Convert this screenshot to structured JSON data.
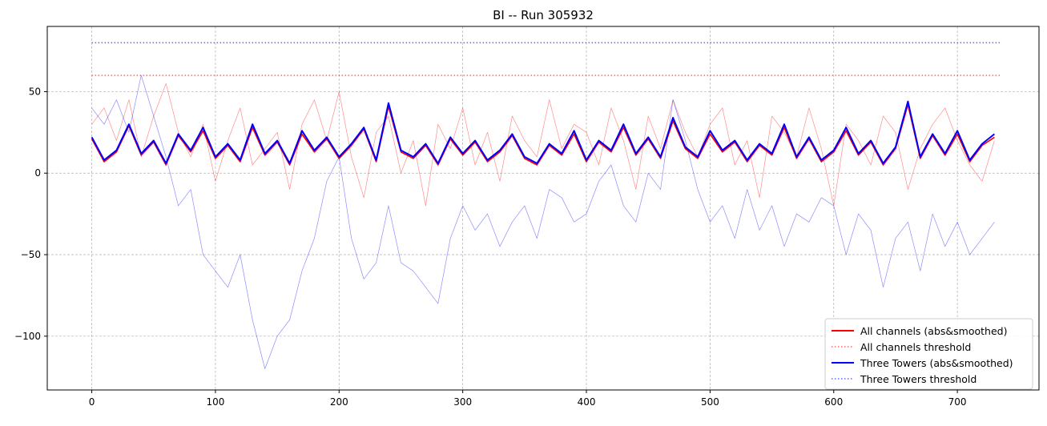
{
  "chart_data": {
    "type": "line",
    "title": "BI -- Run 305932",
    "xlabel": "",
    "ylabel": "",
    "xlim": [
      -36,
      766
    ],
    "ylim": [
      -133,
      90
    ],
    "xticks": [
      0,
      100,
      200,
      300,
      400,
      500,
      600,
      700
    ],
    "yticks": [
      -100,
      -50,
      0,
      50
    ],
    "ytick_labels": [
      "−100",
      "−50",
      "0",
      "50"
    ],
    "grid": true,
    "legend_position": "bottom-right",
    "x_step": 10,
    "series": [
      {
        "color": "#ff0000",
        "style": "thin",
        "opacity": 0.45,
        "values": [
          30,
          40,
          20,
          45,
          10,
          35,
          55,
          25,
          10,
          30,
          -5,
          20,
          40,
          5,
          15,
          25,
          -10,
          30,
          45,
          20,
          50,
          10,
          -15,
          25,
          35,
          0,
          20,
          -20,
          30,
          15,
          40,
          5,
          25,
          -5,
          35,
          20,
          10,
          45,
          15,
          30,
          25,
          5,
          40,
          20,
          -10,
          35,
          15,
          45,
          25,
          10,
          30,
          40,
          5,
          20,
          -15,
          35,
          25,
          10,
          40,
          15,
          -20,
          30,
          20,
          5,
          35,
          25,
          -10,
          15,
          30,
          40,
          20,
          5,
          -5,
          20
        ]
      },
      {
        "color": "#0000ff",
        "style": "thin",
        "opacity": 0.45,
        "values": [
          40,
          30,
          45,
          25,
          60,
          35,
          10,
          -20,
          -10,
          -50,
          -60,
          -70,
          -50,
          -90,
          -120,
          -100,
          -90,
          -60,
          -40,
          -5,
          10,
          -40,
          -65,
          -55,
          -20,
          -55,
          -60,
          -70,
          -80,
          -40,
          -20,
          -35,
          -25,
          -45,
          -30,
          -20,
          -40,
          -10,
          -15,
          -30,
          -25,
          -5,
          5,
          -20,
          -30,
          0,
          -10,
          45,
          20,
          -10,
          -30,
          -20,
          -40,
          -10,
          -35,
          -20,
          -45,
          -25,
          -30,
          -15,
          -20,
          -50,
          -25,
          -35,
          -70,
          -40,
          -30,
          -60,
          -25,
          -45,
          -30,
          -50,
          -40,
          -30
        ]
      },
      {
        "name": "All channels (abs&smoothed)",
        "color": "#ff0000",
        "style": "solid",
        "values": [
          21,
          7,
          13,
          29,
          11,
          19,
          5,
          23,
          13,
          26,
          9,
          17,
          7,
          28,
          11,
          19,
          5,
          24,
          13,
          21,
          9,
          17,
          27,
          7,
          41,
          13,
          9,
          17,
          5,
          21,
          11,
          19,
          7,
          13,
          23,
          9,
          5,
          17,
          11,
          24,
          7,
          19,
          13,
          28,
          11,
          21,
          9,
          32,
          15,
          9,
          24,
          13,
          19,
          7,
          17,
          11,
          28,
          9,
          21,
          7,
          13,
          26,
          11,
          19,
          5,
          15,
          42,
          9,
          23,
          11,
          24,
          7,
          17,
          22
        ]
      },
      {
        "name": "All channels threshold",
        "color": "#ff0000",
        "style": "dotted",
        "value": 60,
        "x_range": [
          0,
          735
        ]
      },
      {
        "name": "Three Towers (abs&smoothed)",
        "color": "#0000ff",
        "style": "solid",
        "values": [
          22,
          8,
          14,
          30,
          12,
          20,
          6,
          24,
          14,
          28,
          10,
          18,
          8,
          30,
          12,
          20,
          6,
          26,
          14,
          22,
          10,
          18,
          28,
          8,
          43,
          14,
          10,
          18,
          6,
          22,
          12,
          20,
          8,
          14,
          24,
          10,
          6,
          18,
          12,
          26,
          8,
          20,
          14,
          30,
          12,
          22,
          10,
          34,
          16,
          10,
          26,
          14,
          20,
          8,
          18,
          12,
          30,
          10,
          22,
          8,
          14,
          28,
          12,
          20,
          6,
          16,
          44,
          10,
          24,
          12,
          26,
          8,
          18,
          24
        ]
      },
      {
        "name": "Three Towers threshold",
        "color": "#0000ff",
        "style": "dotted",
        "value": 80,
        "x_range": [
          0,
          735
        ]
      }
    ],
    "legend": [
      "All channels (abs&smoothed)",
      "All channels threshold",
      "Three Towers (abs&smoothed)",
      "Three Towers threshold"
    ]
  }
}
